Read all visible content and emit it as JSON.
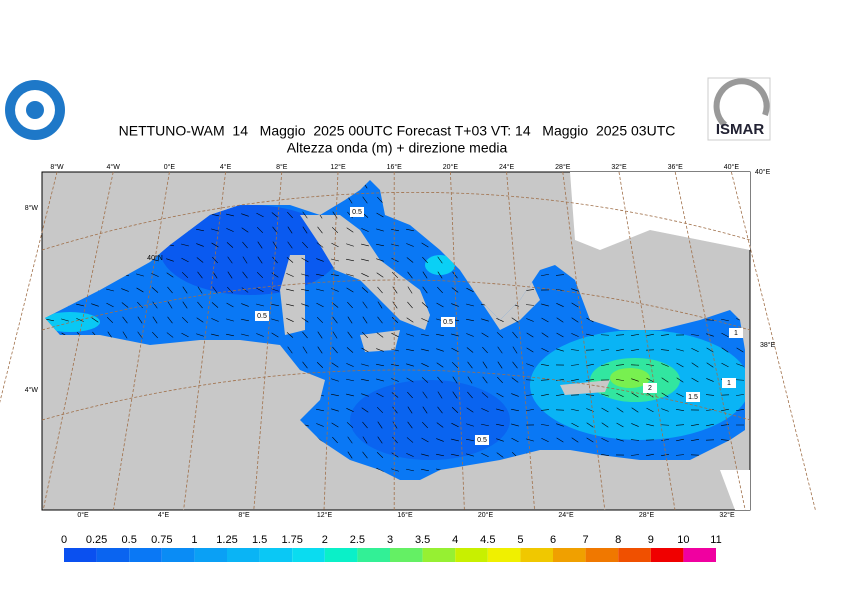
{
  "header": {
    "title": "NETTUNO-WAM  14   Maggio  2025 00UTC Forecast T+03 VT: 14   Maggio  2025 03UTC",
    "subtitle": "Altezza onda (m) + direzione media",
    "logo_right": "ISMAR"
  },
  "map": {
    "top_labels": [
      "8°W",
      "4°W",
      "0°E",
      "4°E",
      "8°E",
      "12°E",
      "16°E",
      "20°E",
      "24°E",
      "28°E",
      "32°E",
      "36°E",
      "40°E"
    ],
    "bottom_labels": [
      "0°E",
      "4°E",
      "8°E",
      "12°E",
      "16°E",
      "20°E",
      "24°E",
      "28°E",
      "32°E"
    ],
    "left_labels": [
      "8°W",
      "4°W"
    ],
    "right_labels": [
      "40°E",
      "38°E"
    ],
    "inner_labels": [
      "40°N"
    ],
    "contour_labels": [
      "0.5",
      "0.5",
      "0.5",
      "0.5",
      "1",
      "1",
      "1.5",
      "2"
    ]
  },
  "colorbar": {
    "levels": [
      0,
      0.25,
      0.5,
      0.75,
      1,
      1.25,
      1.5,
      1.75,
      2,
      2.5,
      3,
      3.5,
      4,
      4.5,
      5,
      6,
      7,
      8,
      9,
      10,
      11
    ],
    "colors": [
      "#0a50f0",
      "#0a64f0",
      "#0a78f5",
      "#0a8cf5",
      "#0aa0f5",
      "#0ab4f5",
      "#0ac8f5",
      "#0adcf0",
      "#0af0c8",
      "#32f096",
      "#64f064",
      "#96f032",
      "#c8f000",
      "#f0f000",
      "#f0c800",
      "#f0a000",
      "#f07800",
      "#f05000",
      "#f00000",
      "#f000a0"
    ]
  }
}
